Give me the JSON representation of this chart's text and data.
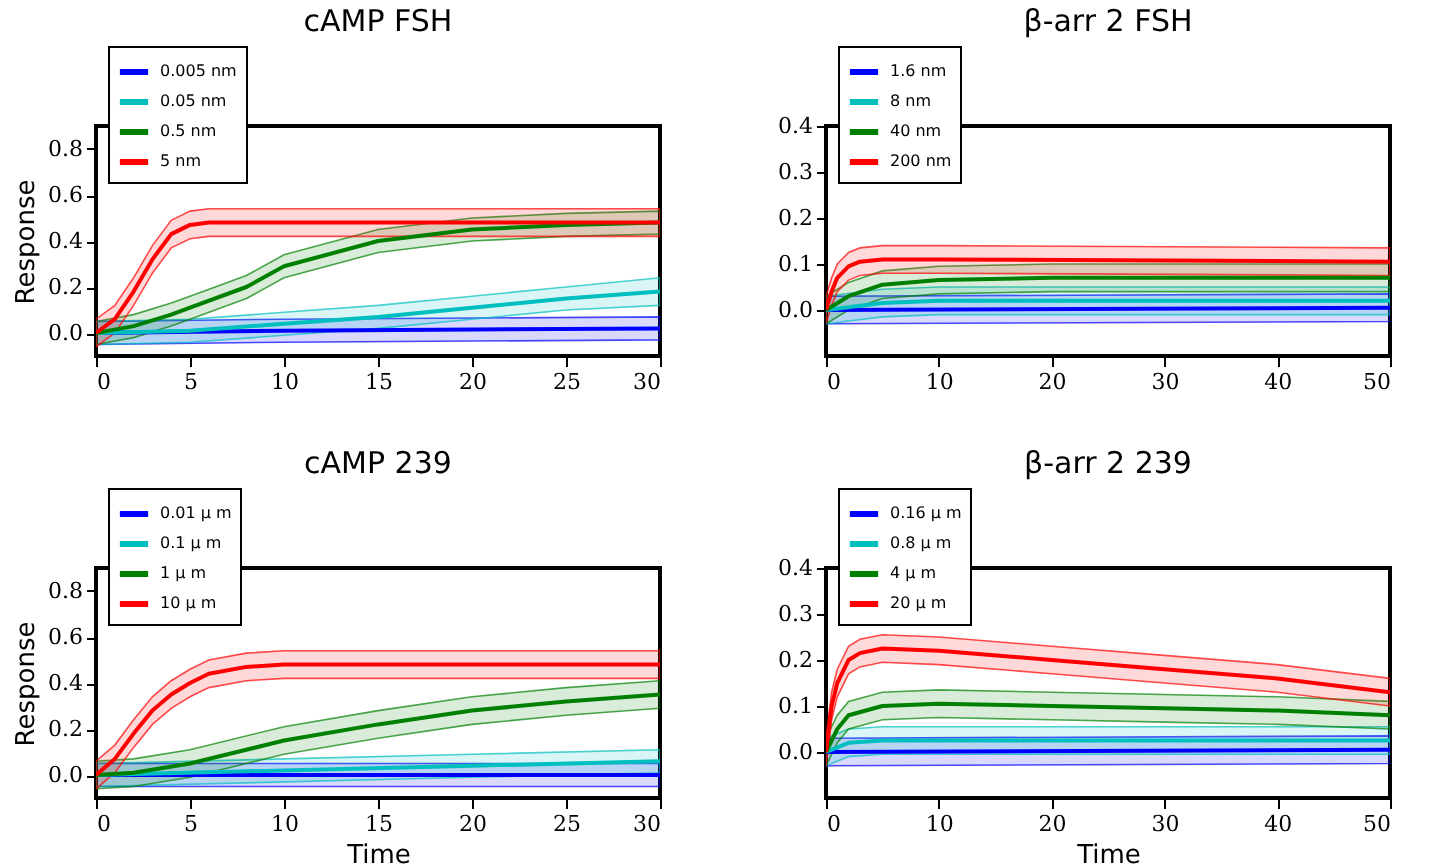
{
  "chart_data": [
    {
      "type": "line",
      "title": "cAMP FSH",
      "ylabel": "Response",
      "xlim": [
        0,
        30
      ],
      "xticks": [
        0,
        5,
        10,
        15,
        20,
        25,
        30
      ],
      "ylim": [
        -0.1,
        0.9
      ],
      "yticks": [
        {
          "value": 0,
          "label": "0.0"
        },
        {
          "value": 0.2,
          "label": "0.2"
        },
        {
          "value": 0.4,
          "label": "0.4"
        },
        {
          "value": 0.6,
          "label": "0.6"
        },
        {
          "value": 0.8,
          "label": "0.8"
        }
      ],
      "legend": "top left",
      "marker": "none",
      "line_style": "solid",
      "grid": false,
      "series": [
        {
          "name": "0.005 nm",
          "color": "#0000ff",
          "x": [
            0,
            10,
            30
          ],
          "values": [
            0,
            0.01,
            0.02
          ],
          "lower": [
            -0.05,
            -0.04,
            -0.03
          ],
          "upper": [
            0.05,
            0.06,
            0.07
          ]
        },
        {
          "name": "0.05 nm",
          "color": "#00bfbf",
          "x": [
            0,
            5,
            10,
            15,
            20,
            25,
            30
          ],
          "values": [
            0,
            0.01,
            0.04,
            0.07,
            0.11,
            0.15,
            0.18
          ],
          "lower": [
            -0.05,
            -0.04,
            -0.01,
            0.02,
            0.06,
            0.1,
            0.12
          ],
          "upper": [
            0.05,
            0.06,
            0.09,
            0.12,
            0.16,
            0.2,
            0.24
          ]
        },
        {
          "name": "0.5 nm",
          "color": "#008000",
          "x": [
            0,
            2,
            4,
            5,
            8,
            10,
            15,
            20,
            25,
            30
          ],
          "values": [
            0,
            0.03,
            0.08,
            0.11,
            0.2,
            0.29,
            0.4,
            0.45,
            0.47,
            0.48
          ],
          "lower": [
            -0.05,
            -0.02,
            0.03,
            0.06,
            0.15,
            0.24,
            0.35,
            0.4,
            0.42,
            0.43
          ],
          "upper": [
            0.05,
            0.08,
            0.13,
            0.16,
            0.25,
            0.34,
            0.45,
            0.5,
            0.52,
            0.53
          ]
        },
        {
          "name": "5 nm",
          "color": "#ff0000",
          "x": [
            0,
            1,
            2,
            3,
            4,
            5,
            6,
            8,
            10,
            15,
            20,
            25,
            30
          ],
          "values": [
            0,
            0.06,
            0.18,
            0.32,
            0.43,
            0.47,
            0.48,
            0.48,
            0.48,
            0.48,
            0.48,
            0.48,
            0.48
          ],
          "lower": [
            -0.06,
            0,
            0.12,
            0.26,
            0.37,
            0.41,
            0.42,
            0.42,
            0.42,
            0.42,
            0.42,
            0.42,
            0.42
          ],
          "upper": [
            0.06,
            0.12,
            0.24,
            0.38,
            0.49,
            0.53,
            0.54,
            0.54,
            0.54,
            0.54,
            0.54,
            0.54,
            0.54
          ]
        }
      ]
    },
    {
      "type": "line",
      "title": "β-arr 2 FSH",
      "xlim": [
        0,
        50
      ],
      "xticks": [
        0,
        10,
        20,
        30,
        40,
        50
      ],
      "ylim": [
        -0.1,
        0.4
      ],
      "yticks": [
        {
          "value": 0,
          "label": "0.0"
        },
        {
          "value": 0.1,
          "label": "0.1"
        },
        {
          "value": 0.2,
          "label": "0.2"
        },
        {
          "value": 0.3,
          "label": "0.3"
        },
        {
          "value": 0.4,
          "label": "0.4"
        }
      ],
      "legend": "top left",
      "marker": "none",
      "line_style": "solid",
      "grid": false,
      "series": [
        {
          "name": "1.6 nm",
          "color": "#0000ff",
          "x": [
            0,
            50
          ],
          "values": [
            0,
            0.005
          ],
          "lower": [
            -0.03,
            -0.025
          ],
          "upper": [
            0.03,
            0.035
          ]
        },
        {
          "name": "8 nm",
          "color": "#00bfbf",
          "x": [
            0,
            5,
            10,
            50
          ],
          "values": [
            0,
            0.015,
            0.02,
            0.02
          ],
          "lower": [
            -0.03,
            -0.015,
            -0.01,
            -0.01
          ],
          "upper": [
            0.03,
            0.045,
            0.05,
            0.05
          ]
        },
        {
          "name": "40 nm",
          "color": "#008000",
          "x": [
            0,
            2,
            5,
            10,
            20,
            50
          ],
          "values": [
            0,
            0.03,
            0.055,
            0.065,
            0.07,
            0.07
          ],
          "lower": [
            -0.03,
            0,
            0.025,
            0.035,
            0.04,
            0.04
          ],
          "upper": [
            0.03,
            0.06,
            0.085,
            0.095,
            0.1,
            0.1
          ]
        },
        {
          "name": "200 nm",
          "color": "#ff0000",
          "x": [
            0,
            0.5,
            1,
            2,
            3,
            5,
            10,
            50
          ],
          "values": [
            0,
            0.04,
            0.07,
            0.095,
            0.105,
            0.11,
            0.11,
            0.105
          ],
          "lower": [
            -0.03,
            0.01,
            0.04,
            0.065,
            0.075,
            0.08,
            0.08,
            0.075
          ],
          "upper": [
            0.03,
            0.07,
            0.1,
            0.125,
            0.135,
            0.14,
            0.14,
            0.135
          ]
        }
      ]
    },
    {
      "type": "line",
      "title": "cAMP 239",
      "xlabel": "Time",
      "ylabel": "Response",
      "xlim": [
        0,
        30
      ],
      "xticks": [
        0,
        5,
        10,
        15,
        20,
        25,
        30
      ],
      "ylim": [
        -0.1,
        0.9
      ],
      "yticks": [
        {
          "value": 0,
          "label": "0.0"
        },
        {
          "value": 0.2,
          "label": "0.2"
        },
        {
          "value": 0.4,
          "label": "0.4"
        },
        {
          "value": 0.6,
          "label": "0.6"
        },
        {
          "value": 0.8,
          "label": "0.8"
        }
      ],
      "legend": "top left",
      "marker": "none",
      "line_style": "solid",
      "grid": false,
      "series": [
        {
          "name": "0.01 μ m",
          "color": "#0000ff",
          "x": [
            0,
            30
          ],
          "values": [
            0,
            0
          ],
          "lower": [
            -0.05,
            -0.05
          ],
          "upper": [
            0.05,
            0.05
          ]
        },
        {
          "name": "0.1 μ m",
          "color": "#00bfbf",
          "x": [
            0,
            10,
            20,
            30
          ],
          "values": [
            0,
            0.02,
            0.04,
            0.06
          ],
          "lower": [
            -0.05,
            -0.03,
            -0.01,
            0.01
          ],
          "upper": [
            0.05,
            0.07,
            0.09,
            0.11
          ]
        },
        {
          "name": "1 μ m",
          "color": "#008000",
          "x": [
            0,
            2,
            5,
            10,
            15,
            20,
            25,
            30
          ],
          "values": [
            0,
            0.01,
            0.05,
            0.15,
            0.22,
            0.28,
            0.32,
            0.35
          ],
          "lower": [
            -0.06,
            -0.05,
            -0.01,
            0.09,
            0.16,
            0.22,
            0.26,
            0.29
          ],
          "upper": [
            0.06,
            0.07,
            0.11,
            0.21,
            0.28,
            0.34,
            0.38,
            0.41
          ]
        },
        {
          "name": "10 μ m",
          "color": "#ff0000",
          "x": [
            0,
            1,
            2,
            3,
            4,
            5,
            6,
            8,
            10,
            15,
            30
          ],
          "values": [
            0,
            0.07,
            0.18,
            0.28,
            0.35,
            0.4,
            0.44,
            0.47,
            0.48,
            0.48,
            0.48
          ],
          "lower": [
            -0.06,
            0.01,
            0.12,
            0.22,
            0.29,
            0.34,
            0.38,
            0.41,
            0.42,
            0.42,
            0.42
          ],
          "upper": [
            0.06,
            0.13,
            0.24,
            0.34,
            0.41,
            0.46,
            0.5,
            0.53,
            0.54,
            0.54,
            0.54
          ]
        }
      ]
    },
    {
      "type": "line",
      "title": "β-arr 2 239",
      "xlabel": "Time",
      "xlim": [
        0,
        50
      ],
      "xticks": [
        0,
        10,
        20,
        30,
        40,
        50
      ],
      "ylim": [
        -0.1,
        0.4
      ],
      "yticks": [
        {
          "value": 0,
          "label": "0.0"
        },
        {
          "value": 0.1,
          "label": "0.1"
        },
        {
          "value": 0.2,
          "label": "0.2"
        },
        {
          "value": 0.3,
          "label": "0.3"
        },
        {
          "value": 0.4,
          "label": "0.4"
        }
      ],
      "legend": "top left",
      "marker": "none",
      "line_style": "solid",
      "grid": false,
      "series": [
        {
          "name": "0.16 μ m",
          "color": "#0000ff",
          "x": [
            0,
            50
          ],
          "values": [
            0,
            0.005
          ],
          "lower": [
            -0.03,
            -0.025
          ],
          "upper": [
            0.03,
            0.035
          ]
        },
        {
          "name": "0.8 μ m",
          "color": "#00bfbf",
          "x": [
            0,
            2,
            5,
            50
          ],
          "values": [
            0,
            0.02,
            0.025,
            0.025
          ],
          "lower": [
            -0.03,
            -0.01,
            -0.005,
            -0.005
          ],
          "upper": [
            0.03,
            0.05,
            0.055,
            0.055
          ]
        },
        {
          "name": "4 μ m",
          "color": "#008000",
          "x": [
            0,
            1,
            2,
            5,
            10,
            20,
            30,
            40,
            50
          ],
          "values": [
            0,
            0.05,
            0.08,
            0.1,
            0.105,
            0.1,
            0.095,
            0.09,
            0.08
          ],
          "lower": [
            -0.03,
            0.02,
            0.05,
            0.07,
            0.075,
            0.07,
            0.065,
            0.06,
            0.05
          ],
          "upper": [
            0.03,
            0.08,
            0.11,
            0.13,
            0.135,
            0.13,
            0.125,
            0.12,
            0.11
          ]
        },
        {
          "name": "20 μ m",
          "color": "#ff0000",
          "x": [
            0,
            0.5,
            1,
            2,
            3,
            5,
            10,
            20,
            30,
            40,
            50
          ],
          "values": [
            0,
            0.1,
            0.15,
            0.2,
            0.215,
            0.225,
            0.22,
            0.2,
            0.18,
            0.16,
            0.13
          ],
          "lower": [
            -0.03,
            0.07,
            0.12,
            0.17,
            0.185,
            0.195,
            0.19,
            0.17,
            0.15,
            0.13,
            0.1
          ],
          "upper": [
            0.03,
            0.13,
            0.18,
            0.23,
            0.245,
            0.255,
            0.25,
            0.23,
            0.21,
            0.19,
            0.16
          ]
        }
      ]
    }
  ]
}
